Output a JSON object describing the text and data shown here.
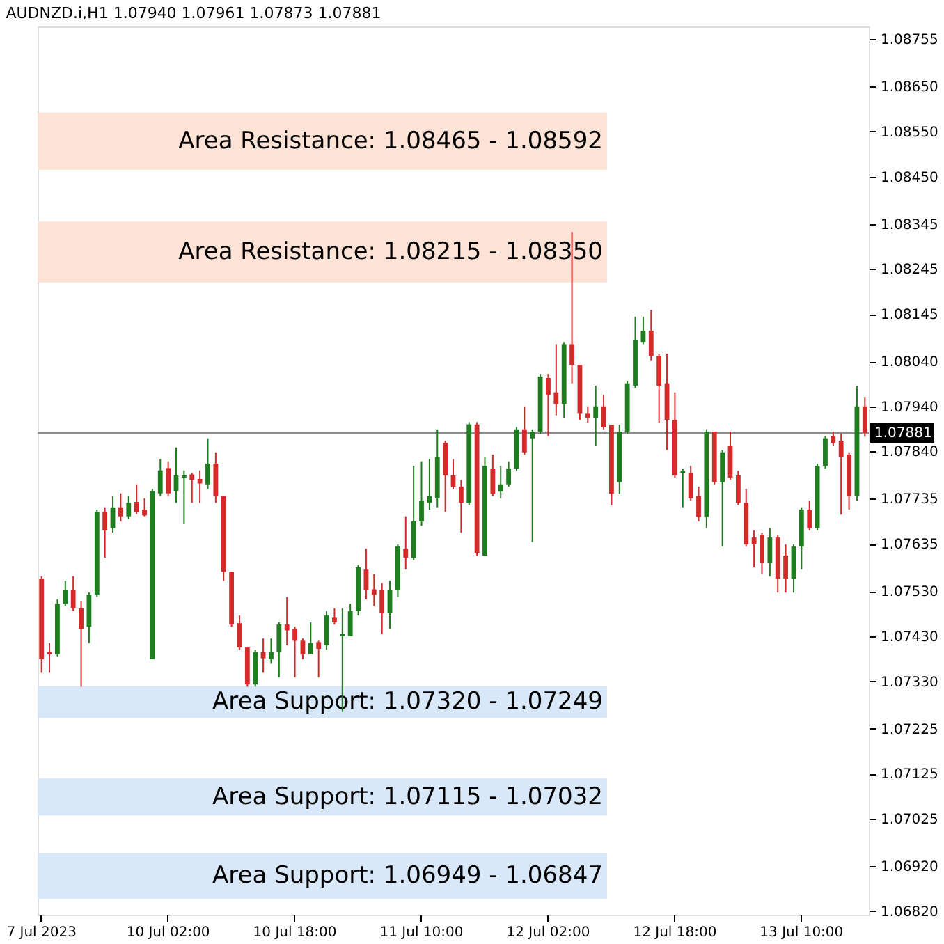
{
  "chart_data": {
    "type": "candlestick",
    "title": "AUDNZD.i,H1  1.07940 1.07961 1.07873 1.07881",
    "categories": [
      "7 Jul 2023",
      null,
      null,
      null,
      null,
      null,
      null,
      null,
      null,
      null,
      null,
      null,
      null,
      null,
      null,
      null,
      "10 Jul 02:00",
      null,
      null,
      null,
      null,
      null,
      null,
      null,
      null,
      null,
      null,
      null,
      null,
      null,
      null,
      null,
      "10 Jul 18:00",
      null,
      null,
      null,
      null,
      null,
      null,
      null,
      null,
      null,
      null,
      null,
      null,
      null,
      null,
      null,
      "11 Jul 10:00",
      null,
      null,
      null,
      null,
      null,
      null,
      null,
      null,
      null,
      null,
      null,
      null,
      null,
      null,
      null,
      "12 Jul 02:00",
      null,
      null,
      null,
      null,
      null,
      null,
      null,
      null,
      null,
      null,
      null,
      null,
      null,
      null,
      null,
      "12 Jul 18:00",
      null,
      null,
      null,
      null,
      null,
      null,
      null,
      null,
      null,
      null,
      null,
      null,
      null,
      null,
      null,
      "13 Jul 10:00",
      null,
      null,
      null,
      null,
      null,
      null,
      null,
      null
    ],
    "ohlc": [
      [
        1.07558,
        1.07563,
        1.07349,
        1.07379
      ],
      [
        1.07395,
        1.07415,
        1.07349,
        1.0739
      ],
      [
        1.0739,
        1.07512,
        1.07384,
        1.07502
      ],
      [
        1.07502,
        1.07553,
        1.07497,
        1.07532
      ],
      [
        1.07532,
        1.07563,
        1.07486,
        1.07492
      ],
      [
        1.07492,
        1.07507,
        1.07318,
        1.07446
      ],
      [
        1.07451,
        1.07527,
        1.07415,
        1.07522
      ],
      [
        1.07522,
        1.07711,
        1.07517,
        1.07706
      ],
      [
        1.07706,
        1.07716,
        1.07604,
        1.07665
      ],
      [
        1.0767,
        1.07741,
        1.0766,
        1.07716
      ],
      [
        1.07716,
        1.07747,
        1.07685,
        1.07696
      ],
      [
        1.07696,
        1.07741,
        1.0769,
        1.07726
      ],
      [
        1.07728,
        1.07767,
        1.07701,
        1.07706
      ],
      [
        1.07711,
        1.07736,
        1.07696,
        1.07698
      ],
      [
        1.07379,
        1.07757,
        1.07379,
        1.07752
      ],
      [
        1.07747,
        1.07823,
        1.07741,
        1.07798
      ],
      [
        1.07803,
        1.07818,
        1.07741,
        1.07747
      ],
      [
        1.07752,
        1.07849,
        1.07726,
        1.07787
      ],
      [
        1.07782,
        1.07798,
        1.0768,
        1.07787
      ],
      [
        1.07789,
        1.07792,
        1.07726,
        1.07777
      ],
      [
        1.07779,
        1.07798,
        1.07726,
        1.07769
      ],
      [
        1.07767,
        1.07869,
        1.07757,
        1.07813
      ],
      [
        1.07813,
        1.07838,
        1.07726,
        1.07741
      ],
      [
        1.07741,
        1.07741,
        1.07553,
        1.07573
      ],
      [
        1.07573,
        1.07573,
        1.07451,
        1.07456
      ],
      [
        1.07459,
        1.07476,
        1.074,
        1.07405
      ],
      [
        1.07405,
        1.07405,
        1.07318,
        1.07323
      ],
      [
        1.07323,
        1.074,
        1.07318,
        1.07395
      ],
      [
        1.07395,
        1.07425,
        1.07349,
        1.07381
      ],
      [
        1.07379,
        1.07425,
        1.07369,
        1.07395
      ],
      [
        1.07395,
        1.07461,
        1.07339,
        1.07456
      ],
      [
        1.07456,
        1.07517,
        1.0741,
        1.07443
      ],
      [
        1.07446,
        1.07451,
        1.07339,
        1.0742
      ],
      [
        1.0742,
        1.07425,
        1.07379,
        1.0739
      ],
      [
        1.0739,
        1.07461,
        1.0739,
        1.07415
      ],
      [
        1.07417,
        1.0742,
        1.07339,
        1.07402
      ],
      [
        1.0741,
        1.07486,
        1.074,
        1.07476
      ],
      [
        1.07471,
        1.07492,
        1.07456,
        1.07461
      ],
      [
        1.0743,
        1.07492,
        1.07262,
        1.07435
      ],
      [
        1.0743,
        1.07502,
        1.0743,
        1.07486
      ],
      [
        1.07486,
        1.07588,
        1.07476,
        1.07583
      ],
      [
        1.07578,
        1.07624,
        1.07512,
        1.07532
      ],
      [
        1.07534,
        1.07568,
        1.07497,
        1.07522
      ],
      [
        1.07532,
        1.07548,
        1.07435,
        1.07481
      ],
      [
        1.07481,
        1.07553,
        1.07446,
        1.07532
      ],
      [
        1.07532,
        1.07634,
        1.07517,
        1.07629
      ],
      [
        1.07624,
        1.07696,
        1.07578,
        1.07604
      ],
      [
        1.07604,
        1.07808,
        1.07599,
        1.07685
      ],
      [
        1.07685,
        1.07818,
        1.07675,
        1.07731
      ],
      [
        1.07726,
        1.07823,
        1.07711,
        1.07741
      ],
      [
        1.07736,
        1.07889,
        1.07716,
        1.07828
      ],
      [
        1.07859,
        1.07864,
        1.07706,
        1.07787
      ],
      [
        1.07787,
        1.07823,
        1.07757,
        1.07762
      ],
      [
        1.07762,
        1.07777,
        1.0766,
        1.07726
      ],
      [
        1.07726,
        1.07905,
        1.07721,
        1.079
      ],
      [
        1.079,
        1.07905,
        1.07609,
        1.07614
      ],
      [
        1.07609,
        1.07828,
        1.07609,
        1.07808
      ],
      [
        1.07802,
        1.07833,
        1.07741,
        1.07746
      ],
      [
        1.07751,
        1.07808,
        1.07736,
        1.07767
      ],
      [
        1.07767,
        1.07818,
        1.07762,
        1.07802
      ],
      [
        1.07802,
        1.07894,
        1.07797,
        1.07889
      ],
      [
        1.07889,
        1.0794,
        1.07833,
        1.07838
      ],
      [
        1.07869,
        1.07889,
        1.07639,
        1.07884
      ],
      [
        1.07884,
        1.08012,
        1.07879,
        1.08006
      ],
      [
        1.08003,
        1.08012,
        1.07874,
        1.07966
      ],
      [
        1.07971,
        1.08078,
        1.0792,
        1.07945
      ],
      [
        1.07945,
        1.08083,
        1.07915,
        1.08078
      ],
      [
        1.08078,
        1.08327,
        1.07991,
        1.08032
      ],
      [
        1.08032,
        1.08032,
        1.0791,
        1.07925
      ],
      [
        1.07925,
        1.0794,
        1.07904,
        1.07915
      ],
      [
        1.07915,
        1.07986,
        1.07853,
        1.0794
      ],
      [
        1.0794,
        1.07966,
        1.07889,
        1.07894
      ],
      [
        1.07899,
        1.07899,
        1.07721,
        1.07746
      ],
      [
        1.07772,
        1.07899,
        1.07746,
        1.07884
      ],
      [
        1.07884,
        1.07996,
        1.07879,
        1.07991
      ],
      [
        1.07986,
        1.08139,
        1.07981,
        1.08088
      ],
      [
        1.08083,
        1.08139,
        1.08078,
        1.08108
      ],
      [
        1.08108,
        1.08154,
        1.08042,
        1.08052
      ],
      [
        1.08052,
        1.08057,
        1.07904,
        1.07986
      ],
      [
        1.07991,
        1.08057,
        1.07843,
        1.0791
      ],
      [
        1.0791,
        1.07971,
        1.07782,
        1.07787
      ],
      [
        1.07792,
        1.07802,
        1.07716,
        1.07797
      ],
      [
        1.07792,
        1.07808,
        1.07731,
        1.07736
      ],
      [
        1.07741,
        1.07762,
        1.07685,
        1.07695
      ],
      [
        1.07695,
        1.07889,
        1.0767,
        1.07884
      ],
      [
        1.07884,
        1.07884,
        1.07767,
        1.07772
      ],
      [
        1.07772,
        1.07843,
        1.07629,
        1.07838
      ],
      [
        1.07853,
        1.07884,
        1.07777,
        1.07782
      ],
      [
        1.07787,
        1.07797,
        1.07721,
        1.07726
      ],
      [
        1.07726,
        1.07757,
        1.07629,
        1.07634
      ],
      [
        1.07649,
        1.07665,
        1.07583,
        1.07634
      ],
      [
        1.07655,
        1.0766,
        1.07568,
        1.07593
      ],
      [
        1.07593,
        1.0767,
        1.07563,
        1.07649
      ],
      [
        1.07649,
        1.07655,
        1.07527,
        1.07558
      ],
      [
        1.07609,
        1.07634,
        1.07527,
        1.07558
      ],
      [
        1.07558,
        1.07634,
        1.07527,
        1.07629
      ],
      [
        1.07629,
        1.07716,
        1.07578,
        1.07711
      ],
      [
        1.07711,
        1.07731,
        1.07665,
        1.0767
      ],
      [
        1.0767,
        1.07813,
        1.07665,
        1.07808
      ],
      [
        1.07808,
        1.07874,
        1.07802,
        1.07869
      ],
      [
        1.07874,
        1.07884,
        1.07853,
        1.07859
      ],
      [
        1.07864,
        1.07879,
        1.077,
        1.07828
      ],
      [
        1.07833,
        1.07838,
        1.07711,
        1.07741
      ],
      [
        1.07741,
        1.07986,
        1.07731,
        1.0794
      ],
      [
        1.0794,
        1.07961,
        1.07873,
        1.07881
      ]
    ],
    "colors": [
      "#d42a2a",
      "#d42a2a",
      "#1e7d1e",
      "#1e7d1e",
      "#d42a2a",
      "#d42a2a",
      "#1e7d1e",
      "#1e7d1e",
      "#d42a2a",
      "#1e7d1e",
      "#d42a2a",
      "#1e7d1e",
      "#d42a2a",
      "#d42a2a",
      "#1e7d1e",
      "#1e7d1e",
      "#d42a2a",
      "#1e7d1e",
      "#1e7d1e",
      "#d42a2a",
      "#d42a2a",
      "#1e7d1e",
      "#d42a2a",
      "#d42a2a",
      "#d42a2a",
      "#d42a2a",
      "#d42a2a",
      "#1e7d1e",
      "#d42a2a",
      "#1e7d1e",
      "#1e7d1e",
      "#d42a2a",
      "#d42a2a",
      "#d42a2a",
      "#1e7d1e",
      "#d42a2a",
      "#1e7d1e",
      "#d42a2a",
      "#1e7d1e",
      "#1e7d1e",
      "#1e7d1e",
      "#d42a2a",
      "#d42a2a",
      "#d42a2a",
      "#1e7d1e",
      "#1e7d1e",
      "#d42a2a",
      "#1e7d1e",
      "#1e7d1e",
      "#1e7d1e",
      "#1e7d1e",
      "#d42a2a",
      "#d42a2a",
      "#d42a2a",
      "#1e7d1e",
      "#d42a2a",
      "#1e7d1e",
      "#d42a2a",
      "#1e7d1e",
      "#1e7d1e",
      "#1e7d1e",
      "#d42a2a",
      "#1e7d1e",
      "#1e7d1e",
      "#d42a2a",
      "#d42a2a",
      "#1e7d1e",
      "#d42a2a",
      "#d42a2a",
      "#d42a2a",
      "#1e7d1e",
      "#d42a2a",
      "#d42a2a",
      "#1e7d1e",
      "#1e7d1e",
      "#1e7d1e",
      "#1e7d1e",
      "#d42a2a",
      "#d42a2a",
      "#d42a2a",
      "#d42a2a",
      "#1e7d1e",
      "#d42a2a",
      "#d42a2a",
      "#1e7d1e",
      "#d42a2a",
      "#1e7d1e",
      "#d42a2a",
      "#d42a2a",
      "#d42a2a",
      "#d42a2a",
      "#d42a2a",
      "#1e7d1e",
      "#d42a2a",
      "#d42a2a",
      "#1e7d1e",
      "#1e7d1e",
      "#d42a2a",
      "#1e7d1e",
      "#1e7d1e",
      "#d42a2a",
      "#d42a2a",
      "#d42a2a",
      "#1e7d1e",
      "#d42a2a"
    ],
    "ylim": [
      1.06812,
      1.08783
    ],
    "yticks": [
      1.08755,
      {
        "value": 1.0865,
        "label": "1.08650"
      },
      {
        "value": 1.0855,
        "label": "1.08550"
      },
      {
        "value": 1.0845,
        "label": "1.08450"
      },
      1.08345,
      1.08245,
      1.08145,
      {
        "value": 1.0804,
        "label": "1.08040"
      },
      {
        "value": 1.0794,
        "label": "1.07940"
      },
      {
        "value": 1.0784,
        "label": "1.07840"
      },
      1.07735,
      1.07635,
      {
        "value": 1.0753,
        "label": "1.07530"
      },
      {
        "value": 1.0743,
        "label": "1.07430"
      },
      {
        "value": 1.0733,
        "label": "1.07330"
      },
      1.07225,
      1.07125,
      1.07025,
      {
        "value": 1.0692,
        "label": "1.06920"
      },
      {
        "value": 1.0682,
        "label": "1.06820"
      }
    ],
    "bands": [
      {
        "axis": "y",
        "from": 1.08465,
        "to": 1.08592,
        "label": "Area Resistance: 1.08465 - 1.08592",
        "color": "#fde2d6"
      },
      {
        "axis": "y",
        "from": 1.08215,
        "to": 1.0835,
        "label": "Area Resistance: 1.08215 - 1.08350",
        "color": "#fde2d6"
      },
      {
        "axis": "y",
        "from": 1.07249,
        "to": 1.0732,
        "label": "Area Support: 1.07320 - 1.07249",
        "color": "#d8e8f8"
      },
      {
        "axis": "y",
        "from": 1.07032,
        "to": 1.07115,
        "label": "Area Support: 1.07115 - 1.07032",
        "color": "#d8e8f8"
      },
      {
        "axis": "y",
        "from": 1.06847,
        "to": 1.06949,
        "label": "Area Support: 1.06949 - 1.06847",
        "color": "#d8e8f8"
      }
    ],
    "ref_lines": [
      {
        "axis": "y",
        "value": 1.07881,
        "label": "1.07881",
        "color": "#8c8c8c",
        "line_style": "solid"
      }
    ]
  }
}
